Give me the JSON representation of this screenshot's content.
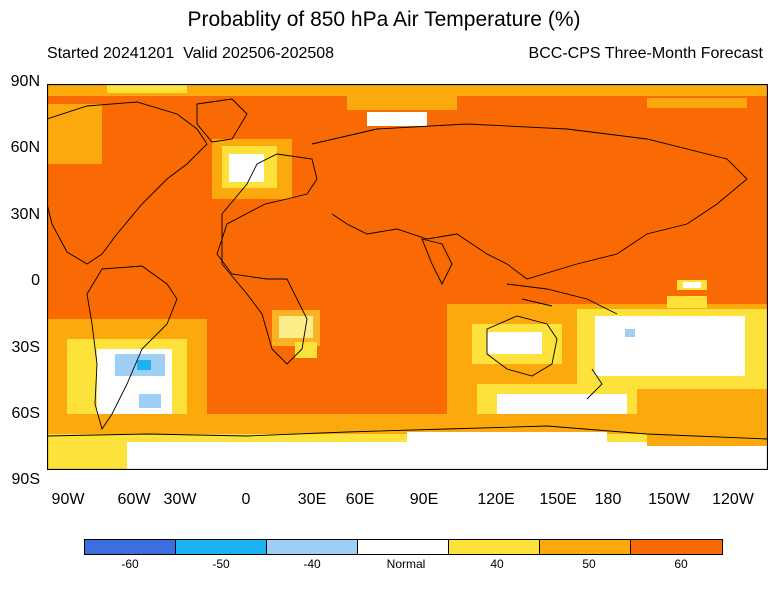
{
  "title": "Probablity of 850 hPa Air Temperature (%)",
  "subtitle_left": "Started 20241201  Valid 202506-202508",
  "subtitle_right": "BCC-CPS Three-Month Forecast",
  "lat_labels": [
    "90N",
    "60N",
    "30N",
    "0",
    "30S",
    "60S",
    "90S"
  ],
  "lon_labels": [
    "90W",
    "60W",
    "30W",
    "0",
    "30E",
    "60E",
    "90E",
    "120E",
    "150E",
    "180",
    "150W",
    "120W"
  ],
  "legend": {
    "labels": [
      "-60",
      "-50",
      "-40",
      "Normal",
      "40",
      "50",
      "60"
    ],
    "colors": [
      "#3d6ee0",
      "#1ab3f0",
      "#9fcff5",
      "#ffffff",
      "#fce23a",
      "#fba90c",
      "#fa6a04"
    ]
  }
}
